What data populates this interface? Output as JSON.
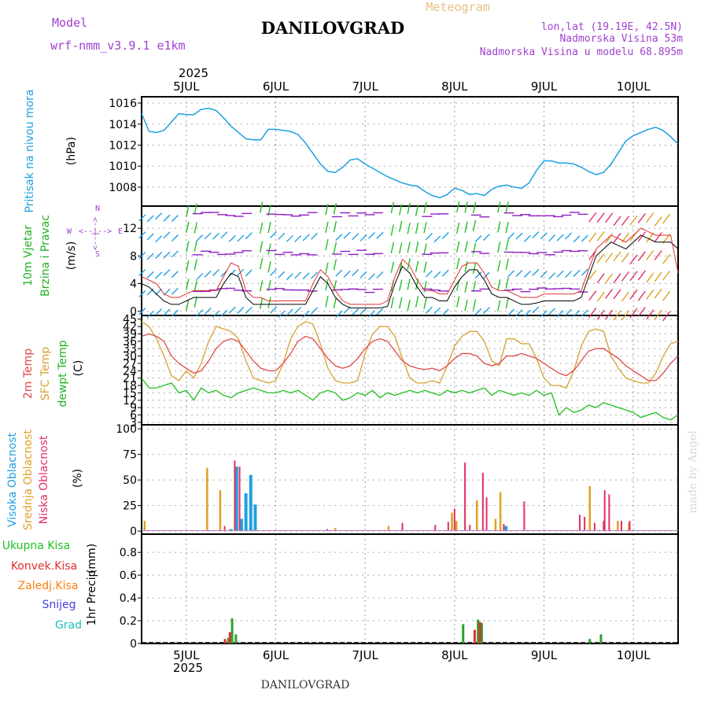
{
  "header": {
    "model_label": "Model",
    "model_name": "wrf-nmm_v3.9.1 e1km",
    "title": "DANILOVGRAD",
    "meteogram_label": "Meteogram",
    "lonlat": "lon,lat (19.19E, 42.5N)",
    "elevation": "Nadmorska Visina 53m",
    "model_elevation": "Nadmorska Visina u modelu 68.895m",
    "footer_title": "DANILOVGRAD",
    "watermark": "made by Angel",
    "year_top": "2025",
    "year_bottom": "2025"
  },
  "colors": {
    "pressure": "#1ca0e0",
    "wind_speed": "#000000",
    "wind_gust": "#e03030",
    "temp_2m": "#e04848",
    "temp_sfc": "#d8a030",
    "dewpt": "#20c020",
    "cloud_high": "#20a0e0",
    "cloud_mid": "#e0a020",
    "cloud_low": "#e03060",
    "precip_total": "#2ca02c",
    "precip_conv": "#e03030",
    "precip_frz": "#ff7f0e",
    "snow": "#4040e0",
    "grad": "#20c0c0",
    "header_purple": "#a040d0",
    "header_orange": "#e8c080"
  },
  "chart_data": [
    {
      "type": "line",
      "name": "pressure",
      "ylabel": "Pritisak na nivou mora",
      "unit": "(hPa)",
      "yticks": [
        1008,
        1010,
        1012,
        1014,
        1016
      ],
      "ylim": [
        1006.2,
        1016.6
      ],
      "xlim": [
        0,
        144
      ],
      "xticks": [
        {
          "label": "5JUL",
          "t": 12
        },
        {
          "label": "6JUL",
          "t": 36
        },
        {
          "label": "7JUL",
          "t": 60
        },
        {
          "label": "8JUL",
          "t": 84
        },
        {
          "label": "9JUL",
          "t": 108
        },
        {
          "label": "10JUL",
          "t": 132
        }
      ],
      "x": [
        0,
        2,
        4,
        6,
        8,
        10,
        12,
        14,
        16,
        18,
        20,
        22,
        24,
        26,
        28,
        30,
        32,
        34,
        36,
        38,
        40,
        42,
        44,
        46,
        48,
        50,
        52,
        54,
        56,
        58,
        60,
        62,
        64,
        66,
        68,
        70,
        72,
        74,
        76,
        78,
        80,
        82,
        84,
        86,
        88,
        90,
        92,
        94,
        96,
        98,
        100,
        102,
        104,
        106,
        108,
        110,
        112,
        114,
        116,
        118,
        120,
        122,
        124,
        126,
        128,
        130,
        132,
        134,
        136,
        138,
        140,
        142,
        144
      ],
      "series": [
        {
          "values": [
            1015,
            1013.3,
            1013.2,
            1013.4,
            1014.2,
            1015,
            1014.9,
            1014.9,
            1015.4,
            1015.5,
            1015.3,
            1014.6,
            1013.8,
            1013.2,
            1012.6,
            1012.5,
            1012.5,
            1013.5,
            1013.5,
            1013.4,
            1013.3,
            1013,
            1012.2,
            1011.2,
            1010.2,
            1009.5,
            1009.4,
            1009.9,
            1010.6,
            1010.7,
            1010.2,
            1009.8,
            1009.4,
            1009.0,
            1008.7,
            1008.4,
            1008.2,
            1008.1,
            1007.6,
            1007.2,
            1007.0,
            1007.3,
            1007.9,
            1007.7,
            1007.3,
            1007.4,
            1007.2,
            1007.8,
            1008.1,
            1008.2,
            1008.0,
            1007.9,
            1008.4,
            1009.6,
            1010.5,
            1010.5,
            1010.3,
            1010.3,
            1010.2,
            1009.9,
            1009.5,
            1009.2,
            1009.4,
            1010.2,
            1011.3,
            1012.4,
            1012.9,
            1013.2,
            1013.5,
            1013.7,
            1013.4,
            1012.8,
            1012.1
          ]
        }
      ]
    },
    {
      "type": "line",
      "name": "wind",
      "ylabel": "10m Vjetar Brzina i Pravac",
      "ylabel_line1": "10m Vjetar",
      "ylabel_line2": "Brzina i Pravac",
      "unit": "(m/s)",
      "compass_w": "W",
      "compass_e": "E",
      "compass_arrows": "<--|-->",
      "compass_n": "N",
      "compass_s": "S",
      "yticks": [
        0,
        4,
        8,
        12
      ],
      "ylim": [
        -0.6,
        15.2
      ],
      "xlim": [
        0,
        144
      ],
      "x": [
        0,
        2,
        4,
        6,
        8,
        10,
        12,
        14,
        16,
        18,
        20,
        22,
        24,
        26,
        28,
        30,
        32,
        34,
        36,
        38,
        40,
        42,
        44,
        46,
        48,
        50,
        52,
        54,
        56,
        58,
        60,
        62,
        64,
        66,
        68,
        70,
        72,
        74,
        76,
        78,
        80,
        82,
        84,
        86,
        88,
        90,
        92,
        94,
        96,
        98,
        100,
        102,
        104,
        106,
        108,
        110,
        112,
        114,
        116,
        118,
        120,
        122,
        124,
        126,
        128,
        130,
        132,
        134,
        136,
        138,
        140,
        142,
        144
      ],
      "series": [
        {
          "values": [
            4,
            3.5,
            2.5,
            1.5,
            1,
            1,
            1.5,
            2,
            2,
            2,
            2,
            4,
            5.5,
            5,
            2,
            1,
            1,
            1,
            1,
            1,
            1,
            1,
            1,
            3,
            5,
            4,
            2,
            1,
            0.5,
            0.5,
            0.5,
            0.5,
            0.5,
            0.7,
            4,
            6.5,
            5.5,
            3.5,
            2,
            2,
            1.5,
            1.5,
            3.5,
            5,
            6,
            6,
            4.5,
            2.5,
            2,
            2,
            1.5,
            1,
            1,
            1.2,
            1.5,
            1.5,
            1.5,
            1.5,
            1.5,
            2,
            5,
            8,
            9,
            10,
            9.5,
            9,
            10,
            11,
            10.5,
            10,
            10,
            10,
            9
          ]
        },
        {
          "values": [
            5,
            4.5,
            4,
            2.5,
            2,
            2,
            2.5,
            3,
            3,
            3,
            3,
            5,
            7,
            6.5,
            3,
            2,
            2,
            1.5,
            1.5,
            1.5,
            1.5,
            1.5,
            1.5,
            4,
            6,
            5,
            3,
            1.5,
            1,
            1,
            1,
            1,
            1,
            1.5,
            5,
            7.5,
            6.5,
            4.5,
            3,
            3,
            2.5,
            2.5,
            4.5,
            6.5,
            7,
            7,
            5.5,
            3.5,
            3,
            3,
            2.5,
            2,
            2,
            2,
            2.5,
            2.5,
            2.5,
            2.5,
            2.5,
            3,
            6,
            9,
            10,
            11,
            10.5,
            10,
            11,
            12,
            11.5,
            11,
            11,
            11,
            5.5
          ]
        }
      ]
    },
    {
      "type": "line",
      "name": "temperature",
      "ylabel_2m": "2m Temp",
      "ylabel_sfc": "SFC Temp",
      "ylabel_dewpt": "dewpt Temp",
      "unit": "(C)",
      "yticks": [
        3,
        6,
        9,
        12,
        15,
        18,
        21,
        24,
        27,
        30,
        33,
        36,
        39,
        42,
        45
      ],
      "ylim": [
        2,
        46.5
      ],
      "xlim": [
        0,
        144
      ],
      "x": [
        0,
        2,
        4,
        6,
        8,
        10,
        12,
        14,
        16,
        18,
        20,
        22,
        24,
        26,
        28,
        30,
        32,
        34,
        36,
        38,
        40,
        42,
        44,
        46,
        48,
        50,
        52,
        54,
        56,
        58,
        60,
        62,
        64,
        66,
        68,
        70,
        72,
        74,
        76,
        78,
        80,
        82,
        84,
        86,
        88,
        90,
        92,
        94,
        96,
        98,
        100,
        102,
        104,
        106,
        108,
        110,
        112,
        114,
        116,
        118,
        120,
        122,
        124,
        126,
        128,
        130,
        132,
        134,
        136,
        138,
        140,
        142,
        144
      ],
      "series": [
        {
          "name": "2m Temp",
          "values": [
            38,
            39,
            38,
            36,
            30,
            27,
            25,
            23,
            24,
            28,
            33,
            36,
            37,
            36,
            32,
            28,
            25,
            24,
            24,
            27,
            31,
            36,
            38,
            37,
            33,
            29,
            26,
            25,
            26,
            29,
            33,
            36,
            37,
            36,
            32,
            28,
            26,
            25,
            24.5,
            25,
            24,
            26,
            29,
            31,
            31,
            30,
            27,
            26,
            27,
            30,
            30,
            31,
            30,
            29,
            27,
            25,
            23,
            22,
            24,
            28,
            32,
            33,
            33,
            31,
            29,
            26,
            24,
            22,
            20,
            20,
            23,
            27,
            30
          ]
        },
        {
          "name": "SFC Temp",
          "values": [
            44,
            42,
            37,
            30,
            22,
            20,
            24,
            21,
            27,
            36,
            42,
            41,
            40,
            37,
            28,
            21,
            20,
            19,
            20,
            27,
            37,
            42,
            44,
            43,
            35,
            25,
            20,
            19,
            19,
            20,
            31,
            39,
            42,
            42,
            38,
            29,
            21,
            19,
            19,
            20,
            19,
            26,
            34,
            38,
            40,
            40,
            36,
            28,
            26,
            37,
            37,
            35,
            35,
            29,
            21,
            18,
            18,
            17,
            24,
            34,
            40,
            41,
            40,
            30,
            25,
            21,
            20,
            19,
            19,
            23,
            30,
            35,
            36
          ]
        },
        {
          "name": "dewpt Temp",
          "values": [
            21,
            17,
            17,
            18,
            19,
            15,
            16,
            12,
            17,
            15,
            16,
            14,
            13,
            15,
            16,
            17,
            16,
            15,
            15,
            16,
            15,
            16,
            14,
            12,
            15,
            16,
            15,
            12,
            13,
            15,
            14,
            16,
            13,
            15,
            14,
            15,
            16,
            15,
            16,
            15,
            14,
            16,
            15,
            16,
            15,
            16,
            17,
            14,
            16,
            15,
            14,
            15,
            14,
            16,
            14,
            15,
            6,
            9,
            7,
            8,
            10,
            9,
            11,
            10,
            9,
            8,
            7,
            5,
            6,
            7,
            5,
            4,
            6
          ]
        }
      ]
    },
    {
      "type": "bar",
      "name": "clouds",
      "ylabel_high": "Visoka Oblacnost",
      "ylabel_mid": "Srednja Oblacnost",
      "ylabel_low": "Niska Oblacnost",
      "unit": "(%)",
      "yticks": [
        0,
        25,
        50,
        75,
        100
      ],
      "ylim": [
        -3,
        104
      ],
      "xlim": [
        0,
        144
      ],
      "series": [
        {
          "name": "Visoka Oblacnost",
          "points": [
            [
              24,
              2
            ],
            [
              25.5,
              63
            ],
            [
              26.8,
              12
            ],
            [
              28,
              37
            ],
            [
              29.3,
              55
            ],
            [
              30.5,
              26
            ],
            [
              97.8,
              5
            ]
          ]
        },
        {
          "name": "Srednja Oblacnost",
          "points": [
            [
              0.8,
              10
            ],
            [
              17.6,
              62
            ],
            [
              21.1,
              40
            ],
            [
              52.0,
              3
            ],
            [
              66.3,
              5
            ],
            [
              83.3,
              18
            ],
            [
              84.5,
              10
            ],
            [
              90.0,
              30
            ],
            [
              95.0,
              12
            ],
            [
              96.3,
              38
            ],
            [
              120.3,
              44
            ],
            [
              127.8,
              10
            ],
            [
              130.8,
              8
            ]
          ]
        },
        {
          "name": "Niska Oblacnost",
          "points": [
            [
              22.3,
              5
            ],
            [
              25.0,
              69
            ],
            [
              26.3,
              63
            ],
            [
              49.8,
              2
            ],
            [
              70.0,
              8
            ],
            [
              78.8,
              6
            ],
            [
              82.3,
              9
            ],
            [
              84.0,
              22
            ],
            [
              86.8,
              67
            ],
            [
              88.1,
              6
            ],
            [
              91.6,
              57
            ],
            [
              92.6,
              33
            ],
            [
              97.2,
              7
            ],
            [
              102.7,
              29
            ],
            [
              117.6,
              16
            ],
            [
              118.9,
              14
            ],
            [
              121.6,
              8
            ],
            [
              124.0,
              10
            ],
            [
              124.3,
              40
            ],
            [
              125.5,
              36
            ],
            [
              128.8,
              10
            ],
            [
              131.0,
              10
            ]
          ]
        }
      ]
    },
    {
      "type": "bar",
      "name": "precipitation",
      "ylabel": "1hr Precip",
      "unit": "(mm)",
      "legend": [
        "Ukupna Kisa",
        "Konvek.Kisa",
        "Zaledj.Kisa",
        "Snijeg",
        "Grad"
      ],
      "yticks": [
        0,
        0.2,
        0.4,
        0.6,
        0.8
      ],
      "ylim": [
        0,
        0.96
      ],
      "xlim": [
        0,
        144
      ],
      "series": [
        {
          "name": "Ukupna Kisa",
          "points": [
            [
              23.3,
              0.05
            ],
            [
              24.3,
              0.22
            ],
            [
              25.3,
              0.08
            ],
            [
              86.3,
              0.17
            ],
            [
              90.3,
              0.21
            ],
            [
              91.3,
              0.18
            ],
            [
              120.3,
              0.04
            ],
            [
              123.3,
              0.08
            ]
          ]
        },
        {
          "name": "Konvek.Kisa",
          "points": [
            [
              22.4,
              0.04
            ],
            [
              23.7,
              0.1
            ],
            [
              89.4,
              0.12
            ],
            [
              90.8,
              0.19
            ]
          ]
        }
      ]
    }
  ]
}
